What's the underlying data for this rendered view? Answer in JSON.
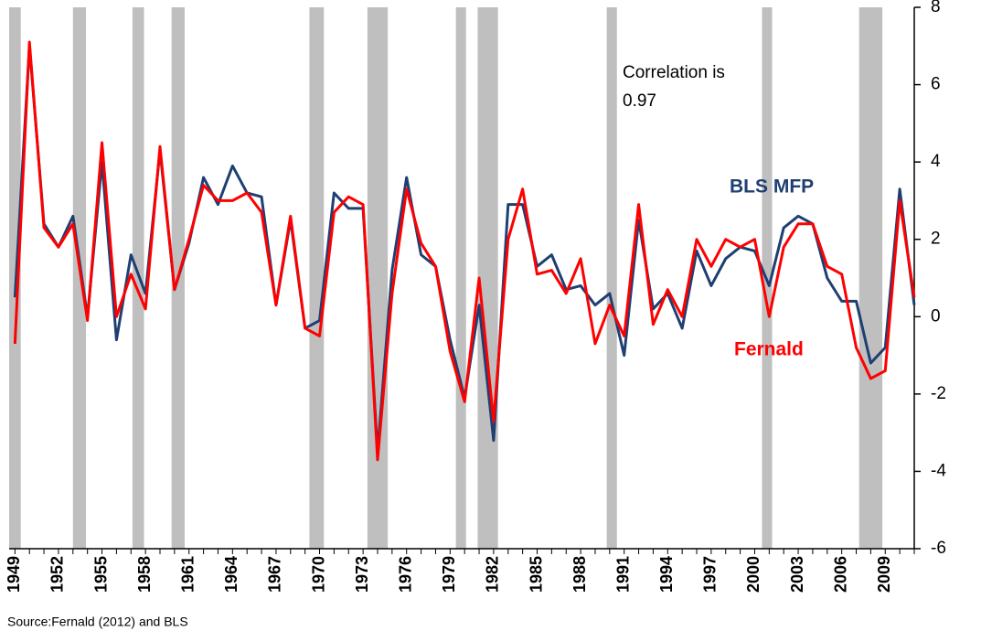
{
  "chart_data": {
    "type": "line",
    "x": [
      1949,
      1950,
      1951,
      1952,
      1953,
      1954,
      1955,
      1956,
      1957,
      1958,
      1959,
      1960,
      1961,
      1962,
      1963,
      1964,
      1965,
      1966,
      1967,
      1968,
      1969,
      1970,
      1971,
      1972,
      1973,
      1974,
      1975,
      1976,
      1977,
      1978,
      1979,
      1980,
      1981,
      1982,
      1983,
      1984,
      1985,
      1986,
      1987,
      1988,
      1989,
      1990,
      1991,
      1992,
      1993,
      1994,
      1995,
      1996,
      1997,
      1998,
      1999,
      2000,
      2001,
      2002,
      2003,
      2004,
      2005,
      2006,
      2007,
      2008,
      2009,
      2010,
      2011
    ],
    "series": [
      {
        "name": "BLS MFP",
        "color": "#1f3f73",
        "values": [
          0.5,
          7.0,
          2.4,
          1.8,
          2.6,
          0.0,
          4.0,
          -0.6,
          1.6,
          0.6,
          4.3,
          0.7,
          1.9,
          3.6,
          2.9,
          3.9,
          3.2,
          3.1,
          0.3,
          2.5,
          -0.3,
          -0.1,
          3.2,
          2.8,
          2.8,
          -3.5,
          1.2,
          3.6,
          1.6,
          1.3,
          -0.6,
          -2.1,
          0.3,
          -3.2,
          2.9,
          2.9,
          1.3,
          1.6,
          0.7,
          0.8,
          0.3,
          0.6,
          -1.0,
          2.5,
          0.2,
          0.6,
          -0.3,
          1.7,
          0.8,
          1.5,
          1.8,
          1.7,
          0.8,
          2.3,
          2.6,
          2.4,
          1.0,
          0.4,
          0.4,
          -1.2,
          -0.8,
          3.3,
          0.3
        ]
      },
      {
        "name": "Fernald",
        "color": "#ff0000",
        "values": [
          -0.7,
          7.1,
          2.3,
          1.8,
          2.4,
          -0.1,
          4.5,
          0.0,
          1.1,
          0.2,
          4.4,
          0.7,
          2.0,
          3.4,
          3.0,
          3.0,
          3.2,
          2.7,
          0.3,
          2.6,
          -0.3,
          -0.5,
          2.7,
          3.1,
          2.9,
          -3.7,
          0.6,
          3.3,
          1.9,
          1.3,
          -0.9,
          -2.2,
          1.0,
          -2.7,
          2.0,
          3.3,
          1.1,
          1.2,
          0.6,
          1.5,
          -0.7,
          0.3,
          -0.5,
          2.9,
          -0.2,
          0.7,
          0.0,
          2.0,
          1.3,
          2.0,
          1.8,
          2.0,
          0.0,
          1.8,
          2.4,
          2.4,
          1.3,
          1.1,
          -0.8,
          -1.6,
          -1.4,
          3.0,
          0.5
        ]
      }
    ],
    "recessions": [
      [
        1948.6,
        1949.4
      ],
      [
        1953.0,
        1953.9
      ],
      [
        1957.1,
        1957.9
      ],
      [
        1959.8,
        1960.7
      ],
      [
        1969.3,
        1970.3
      ],
      [
        1973.3,
        1974.7
      ],
      [
        1979.4,
        1980.1
      ],
      [
        1980.9,
        1982.3
      ],
      [
        1989.8,
        1990.5
      ],
      [
        2000.5,
        2001.2
      ],
      [
        2007.2,
        2008.8
      ]
    ],
    "xlim": [
      1948.6,
      2011.0
    ],
    "xticks": [
      1949,
      1952,
      1955,
      1958,
      1961,
      1964,
      1967,
      1970,
      1973,
      1976,
      1979,
      1982,
      1985,
      1988,
      1991,
      1994,
      1997,
      2000,
      2003,
      2006,
      2009
    ],
    "ylim": [
      -6,
      8
    ],
    "yticks": [
      -6,
      -4,
      -2,
      0,
      2,
      4,
      6,
      8
    ],
    "annotations": [
      "Correlation is",
      "0.97"
    ],
    "source": "Source:Fernald (2012) and BLS"
  }
}
